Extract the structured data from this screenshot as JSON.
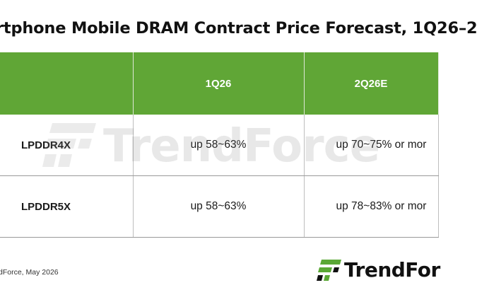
{
  "title": "rtphone Mobile DRAM Contract Price Forecast, 1Q26–2",
  "table": {
    "headers": [
      "",
      "1Q26",
      "2Q26E"
    ],
    "rows": [
      {
        "label": "LPDDR4X",
        "q1": "up 58~63%",
        "q2": "up 70~75% or mor"
      },
      {
        "label": "LPDDR5X",
        "q1": "up 58~63%",
        "q2": "up 78~83% or mor"
      }
    ]
  },
  "watermark": {
    "text": "TrendForce",
    "icon": "trendforce-logo-icon"
  },
  "source": "dForce, May 2026",
  "logo": {
    "text": "TrendFor",
    "icon": "trendforce-logo-icon"
  },
  "colors": {
    "header_bg": "#60a636",
    "logo_green": "#5aa835",
    "text": "#1a1a1a"
  }
}
